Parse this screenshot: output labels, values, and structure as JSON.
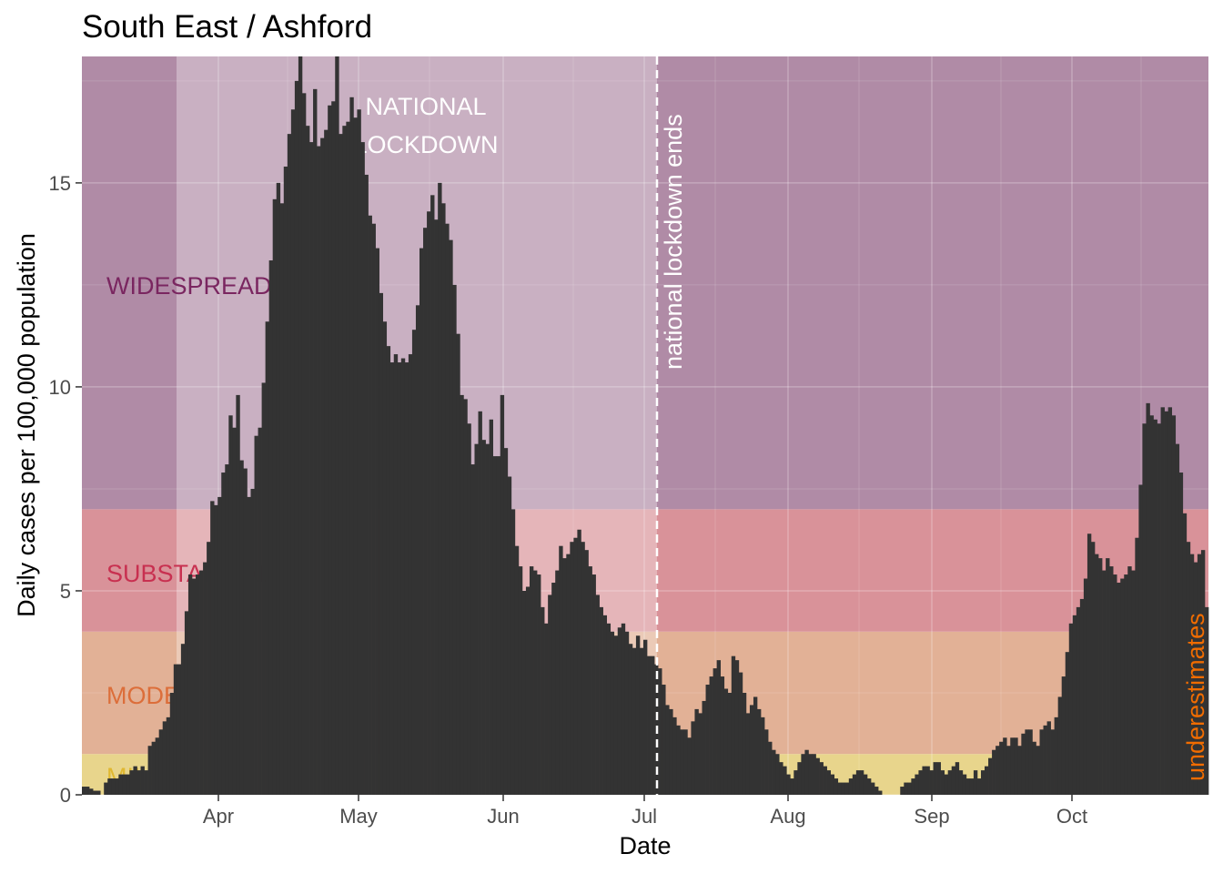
{
  "chart_data": {
    "type": "bar",
    "title": "South East / Ashford",
    "xlabel": "Date",
    "ylabel": "Daily cases per 100,000 population",
    "x_ticks": [
      "Apr",
      "May",
      "Jun",
      "Jul",
      "Aug",
      "Sep",
      "Oct"
    ],
    "y_ticks": [
      "0",
      "5",
      "10",
      "15"
    ],
    "ylim": [
      0,
      18.1
    ],
    "grid": true,
    "bar_color": "#333333",
    "bands": [
      {
        "label": "MILD",
        "from": 0,
        "to": 1,
        "color": "#e8d58c",
        "text_color": "#e0b830"
      },
      {
        "label": "MODERATE",
        "from": 1,
        "to": 4,
        "color": "#e2b196",
        "text_color": "#dc6e3a"
      },
      {
        "label": "SUBSTANTIAL",
        "from": 4,
        "to": 7,
        "color": "#d99299",
        "text_color": "#c83050"
      },
      {
        "label": "WIDESPREAD",
        "from": 7,
        "to": 18.1,
        "color": "#b08ba6",
        "text_color": "#7a2660"
      }
    ],
    "annotations": {
      "lockdown_region": "NATIONAL LOCKDOWN",
      "lockdown_end": "national lockdown ends",
      "underestimates": "underestimates",
      "underestimates_color": "#f06c00"
    },
    "values": [
      0.2,
      0.2,
      0.15,
      0.1,
      0.1,
      0,
      0.3,
      0.4,
      0.4,
      0.4,
      0.5,
      0.5,
      0.5,
      0.6,
      0.7,
      0.6,
      0.7,
      0.6,
      1.2,
      1.3,
      1.4,
      1.6,
      1.8,
      1.9,
      2.5,
      3.2,
      3.2,
      3.7,
      4.5,
      5.4,
      5.3,
      5.4,
      5.5,
      5.7,
      6.2,
      7.2,
      7.1,
      7.3,
      7.9,
      8.1,
      9.3,
      9.0,
      9.8,
      8.2,
      8.0,
      7.3,
      7.5,
      8.8,
      9.0,
      10.1,
      11.6,
      13.1,
      14.6,
      15.0,
      14.5,
      15.4,
      16.2,
      16.8,
      17.5,
      18.1,
      17.2,
      16.4,
      16.0,
      17.3,
      15.9,
      16.1,
      16.3,
      16.9,
      17.0,
      18.1,
      16.2,
      16.4,
      16.5,
      17.1,
      16.6,
      16.8,
      16.0,
      15.2,
      14.2,
      14.0,
      13.4,
      12.3,
      11.6,
      11.0,
      10.6,
      10.8,
      10.6,
      10.7,
      10.6,
      10.8,
      11.4,
      12.0,
      13.4,
      13.9,
      14.3,
      14.7,
      14.1,
      15.0,
      14.5,
      14.0,
      13.6,
      12.5,
      11.3,
      9.8,
      9.7,
      9.1,
      8.1,
      8.6,
      9.4,
      8.7,
      8.6,
      9.2,
      8.3,
      8.3,
      9.8,
      8.5,
      7.8,
      7.0,
      6.1,
      5.6,
      5.0,
      5.1,
      5.6,
      5.5,
      5.4,
      4.6,
      4.2,
      4.9,
      5.2,
      5.5,
      6.1,
      5.8,
      5.9,
      6.2,
      6.3,
      6.5,
      6.2,
      6.0,
      5.6,
      5.4,
      4.9,
      4.6,
      4.4,
      4.2,
      4.0,
      3.9,
      4.1,
      4.2,
      4.0,
      3.7,
      3.6,
      3.9,
      3.6,
      3.8,
      3.4,
      3.4,
      3.2,
      3.1,
      2.7,
      2.2,
      2.1,
      1.9,
      1.7,
      1.6,
      1.6,
      1.4,
      1.8,
      2.1,
      2.0,
      2.3,
      2.7,
      2.9,
      3.1,
      3.3,
      2.9,
      2.6,
      2.5,
      3.4,
      3.3,
      3.0,
      2.5,
      2.0,
      2.2,
      2.4,
      2.1,
      1.9,
      1.6,
      1.3,
      1.1,
      1.0,
      0.8,
      0.7,
      0.5,
      0.4,
      0.6,
      0.8,
      1.0,
      1.1,
      1.0,
      1.0,
      0.9,
      0.8,
      0.7,
      0.6,
      0.5,
      0.4,
      0.3,
      0.3,
      0.3,
      0.4,
      0.5,
      0.6,
      0.6,
      0.5,
      0.4,
      0.3,
      0.2,
      0.1,
      0.0,
      0.0,
      0.0,
      0.0,
      0.0,
      0.2,
      0.3,
      0.3,
      0.4,
      0.5,
      0.6,
      0.7,
      0.7,
      0.6,
      0.8,
      0.8,
      0.6,
      0.5,
      0.6,
      0.7,
      0.8,
      0.6,
      0.5,
      0.4,
      0.4,
      0.6,
      0.4,
      0.6,
      0.7,
      0.9,
      1.1,
      1.2,
      1.3,
      1.4,
      1.2,
      1.4,
      1.4,
      1.2,
      1.5,
      1.6,
      1.6,
      1.3,
      1.2,
      1.6,
      1.7,
      1.8,
      1.6,
      1.9,
      2.4,
      2.9,
      3.5,
      4.2,
      4.4,
      4.6,
      4.8,
      5.3,
      6.4,
      6.2,
      5.9,
      5.8,
      5.5,
      5.8,
      5.6,
      5.4,
      5.2,
      5.3,
      5.4,
      5.6,
      5.5,
      6.3,
      7.6,
      9.1,
      9.6,
      9.3,
      9.2,
      9.1,
      9.5,
      9.4,
      9.5,
      9.3,
      8.6,
      7.9,
      6.9,
      6.2,
      5.9,
      5.7,
      5.9,
      6.0,
      4.6
    ]
  }
}
